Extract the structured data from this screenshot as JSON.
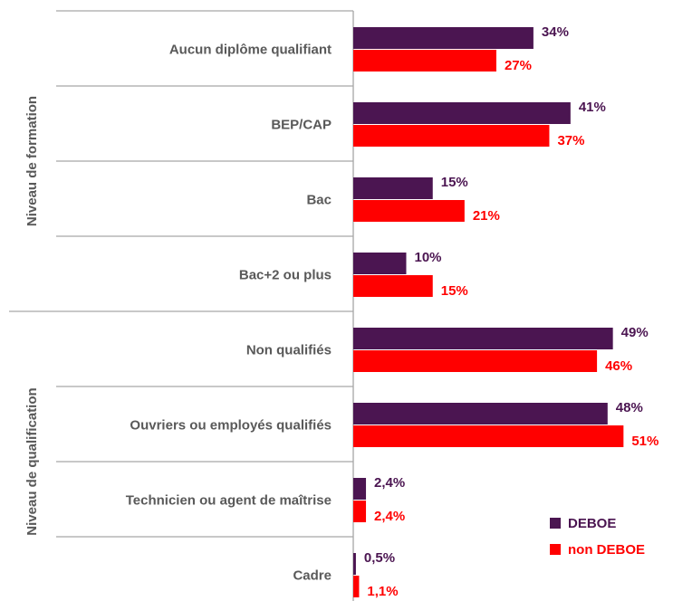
{
  "chart_data": {
    "type": "bar",
    "orientation": "horizontal",
    "group_labels": [
      "Niveau de formation",
      "Niveau de qualification"
    ],
    "categories": [
      "Aucun diplôme qualifiant",
      "BEP/CAP",
      "Bac",
      "Bac+2 ou plus",
      "Non qualifiés",
      "Ouvriers ou employés qualifiés",
      "Technicien ou agent de maîtrise",
      "Cadre"
    ],
    "series": [
      {
        "name": "DEBOE",
        "color": "#4b1551",
        "values": [
          34,
          41,
          15,
          10,
          49,
          48,
          2.4,
          0.5
        ],
        "value_labels": [
          "34%",
          "41%",
          "15%",
          "10%",
          "49%",
          "48%",
          "2,4%",
          "0,5%"
        ]
      },
      {
        "name": "non DEBOE",
        "color": "#ff0000",
        "values": [
          27,
          37,
          21,
          15,
          46,
          51,
          2.4,
          1.1
        ],
        "value_labels": [
          "27%",
          "37%",
          "21%",
          "15%",
          "46%",
          "51%",
          "2,4%",
          "1,1%"
        ]
      }
    ],
    "legend": "lower right"
  }
}
